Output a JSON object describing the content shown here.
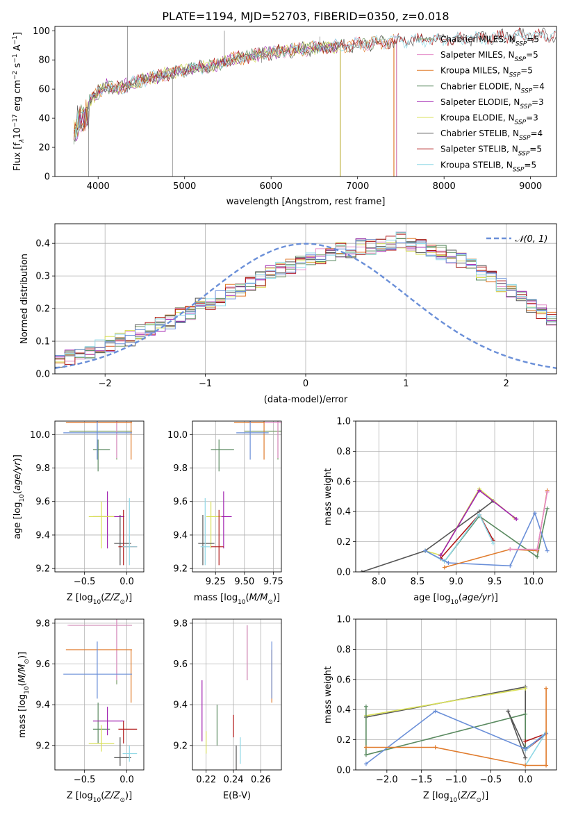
{
  "figure": {
    "title": "PLATE=1194, MJD=52703, FIBERID=0350, z=0.018",
    "colors": {
      "Chabrier MILES": "#7a9d6a",
      "Salpeter MILES": "#e48cc8",
      "Kroupa MILES": "#e07b2c",
      "Chabrier ELODIE": "#5a8a60",
      "Salpeter ELODIE": "#a020b0",
      "Kroupa ELODIE": "#d9e05a",
      "Chabrier STELIB": "#555555",
      "Salpeter STELIB": "#b01818",
      "Kroupa STELIB": "#8fd8e6",
      "normal": "#6a8fd8",
      "extra_blue": "#6a8fd8"
    }
  },
  "chart_data": [
    {
      "id": "spectrum",
      "type": "line",
      "title": "PLATE=1194, MJD=52703, FIBERID=0350, z=0.018",
      "xlabel": "wavelength [Angstrom, rest frame]",
      "ylabel_parts": [
        "Flux [f",
        "λ",
        "10",
        "−17",
        " erg cm",
        "−2",
        " s",
        "−1",
        " A",
        "−1",
        "]"
      ],
      "xlim": [
        3500,
        9300
      ],
      "ylim": [
        0,
        103
      ],
      "xticks": [
        4000,
        5000,
        6000,
        7000,
        8000,
        9000
      ],
      "yticks": [
        0,
        20,
        40,
        60,
        80,
        100
      ],
      "x": [
        3720,
        3800,
        3900,
        4000,
        4100,
        4200,
        4300,
        4500,
        4700,
        4900,
        5100,
        5300,
        5500,
        5700,
        5900,
        6100,
        6300,
        6500,
        6700,
        6900,
        7100,
        7300,
        7500,
        7800,
        8100,
        8400,
        8700,
        9000,
        9100
      ],
      "y": [
        40,
        48,
        52,
        58,
        62,
        60,
        62,
        66,
        69,
        72,
        74,
        76,
        80,
        82,
        84,
        86,
        87,
        88,
        89,
        90,
        91,
        92,
        93,
        94,
        94,
        95,
        96,
        97,
        97
      ],
      "series": [
        {
          "name": "Chabrier MILES, N",
          "sub": "SSP",
          "suffix": "=5",
          "end": 7450
        },
        {
          "name": "Salpeter MILES, N",
          "sub": "SSP",
          "suffix": "=5",
          "end": 7450
        },
        {
          "name": "Kroupa MILES, N",
          "sub": "SSP",
          "suffix": "=5",
          "end": 7420
        },
        {
          "name": "Chabrier ELODIE, N",
          "sub": "SSP",
          "suffix": "=4",
          "end": 6800
        },
        {
          "name": "Salpeter ELODIE, N",
          "sub": "SSP",
          "suffix": "=3",
          "end": 6800
        },
        {
          "name": "Kroupa ELODIE, N",
          "sub": "SSP",
          "suffix": "=3",
          "end": 6800
        },
        {
          "name": "Chabrier STELIB, N",
          "sub": "SSP",
          "suffix": "=4",
          "end": 9300
        },
        {
          "name": "Salpeter STELIB, N",
          "sub": "SSP",
          "suffix": "=5",
          "end": 9300
        },
        {
          "name": "Kroupa STELIB, N",
          "sub": "SSP",
          "suffix": "=5",
          "end": 9300
        }
      ],
      "legend": "right"
    },
    {
      "id": "residuals",
      "type": "area",
      "xlabel": "(data-model)/error",
      "ylabel": "Normed distribution",
      "xlim": [
        -2.5,
        2.5
      ],
      "ylim": [
        0,
        0.46
      ],
      "xticks": [
        -2,
        -1,
        0,
        1,
        2
      ],
      "yticks": [
        0.0,
        0.1,
        0.2,
        0.3,
        0.4
      ],
      "bin_width": 0.1,
      "histogram_values": [
        0.04,
        0.05,
        0.06,
        0.07,
        0.08,
        0.09,
        0.1,
        0.11,
        0.13,
        0.14,
        0.15,
        0.16,
        0.18,
        0.19,
        0.21,
        0.22,
        0.23,
        0.25,
        0.26,
        0.28,
        0.29,
        0.31,
        0.32,
        0.33,
        0.34,
        0.35,
        0.36,
        0.37,
        0.38,
        0.38,
        0.39,
        0.39,
        0.4,
        0.4,
        0.41,
        0.4,
        0.39,
        0.38,
        0.37,
        0.36,
        0.35,
        0.33,
        0.31,
        0.29,
        0.27,
        0.25,
        0.23,
        0.21,
        0.19,
        0.17
      ],
      "legend_label": "𝒩(0, 1)",
      "legend": "top-right"
    },
    {
      "id": "age_vs_Z",
      "type": "scatter",
      "xlabel_pre": "Z [log",
      "xlabel_sub": "10",
      "xlabel_post": "(Z/Z",
      "xlabel_sub2": "⊙",
      "xlabel_end": ")]",
      "ylabel_pre": "age  [log",
      "ylabel_sub": "10",
      "ylabel_post": "(age/yr)]",
      "xlim": [
        -0.85,
        0.2
      ],
      "ylim": [
        9.18,
        10.08
      ],
      "xticks": [
        -0.5,
        0.0
      ],
      "yticks": [
        9.2,
        9.4,
        9.6,
        9.8,
        10.0
      ]
    },
    {
      "id": "age_vs_mass",
      "type": "scatter",
      "xlabel_pre": "mass [log",
      "xlabel_sub": "10",
      "xlabel_post": "(M/M",
      "xlabel_sub2": "⊙",
      "xlabel_end": ")]",
      "xlim": [
        9.05,
        9.82
      ],
      "ylim": [
        9.18,
        10.08
      ],
      "xticks": [
        9.25,
        9.5,
        9.75
      ],
      "yticks": [
        9.2,
        9.4,
        9.6,
        9.8,
        10.0
      ]
    },
    {
      "id": "weight_vs_age",
      "type": "line",
      "xlabel_pre": "age  [log",
      "xlabel_sub": "10",
      "xlabel_post": "(age/yr)]",
      "ylabel": "mass weight",
      "xlim": [
        7.7,
        10.3
      ],
      "ylim": [
        0,
        1.0
      ],
      "xticks": [
        8.0,
        8.5,
        9.0,
        9.5,
        10.0
      ],
      "yticks": [
        0.0,
        0.2,
        0.4,
        0.6,
        0.8,
        1.0
      ]
    },
    {
      "id": "mass_vs_Z",
      "type": "scatter",
      "xlabel_pre": "Z [log",
      "xlabel_sub": "10",
      "xlabel_post": "(Z/Z",
      "xlabel_sub2": "⊙",
      "xlabel_end": ")]",
      "ylabel_pre": "mass [log",
      "ylabel_sub": "10",
      "ylabel_post": "(M/M",
      "ylabel_sub2": "⊙",
      "ylabel_end": ")]",
      "xlim": [
        -0.85,
        0.2
      ],
      "ylim": [
        9.08,
        9.82
      ],
      "xticks": [
        -0.5,
        0.0
      ],
      "yticks": [
        9.2,
        9.4,
        9.6,
        9.8
      ]
    },
    {
      "id": "mass_vs_ebv",
      "type": "scatter",
      "xlabel": "E(B-V)",
      "xlim": [
        0.21,
        0.275
      ],
      "ylim": [
        9.08,
        9.82
      ],
      "xticks": [
        0.22,
        0.24,
        0.26
      ],
      "yticks": [
        9.2,
        9.4,
        9.6,
        9.8
      ]
    },
    {
      "id": "weight_vs_Z",
      "type": "line",
      "xlabel_pre": "Z [log",
      "xlabel_sub": "10",
      "xlabel_post": "(Z/Z",
      "xlabel_sub2": "⊙",
      "xlabel_end": ")]",
      "ylabel": "mass weight",
      "xlim": [
        -2.45,
        0.45
      ],
      "ylim": [
        0,
        1.0
      ],
      "xticks": [
        -2.0,
        -1.5,
        -1.0,
        -0.5,
        0.0
      ],
      "yticks": [
        0.0,
        0.2,
        0.4,
        0.6,
        0.8,
        1.0
      ]
    }
  ],
  "fits": [
    {
      "name": "Chabrier MILES",
      "Z": -0.12,
      "Zlo": -0.68,
      "Zhi": 0.06,
      "age": 10.02,
      "ageLo": 9.85,
      "ageHi": 10.08,
      "mass": 9.79,
      "massLo": 9.5,
      "massHi": 9.82,
      "ebv": 0.25,
      "ebvLo": 9.52,
      "ebvHi": 9.79
    },
    {
      "name": "Salpeter MILES",
      "Z": -0.12,
      "Zlo": -0.7,
      "Zhi": 0.06,
      "age": 10.07,
      "ageLo": 9.86,
      "ageHi": 10.08,
      "mass": 9.79,
      "massLo": 9.52,
      "massHi": 9.82,
      "ebv": 0.25,
      "ebvLo": 9.52,
      "ebvHi": 9.79
    },
    {
      "name": "Kroupa MILES",
      "Z": 0.05,
      "Zlo": -0.72,
      "Zhi": 0.06,
      "age": 10.07,
      "ageLo": 9.85,
      "ageHi": 10.08,
      "mass": 9.67,
      "massLo": 9.41,
      "massHi": 9.67,
      "ebv": 0.268,
      "ebvLo": 9.41,
      "ebvHi": 9.67
    },
    {
      "name": "Chabrier ELODIE",
      "Z": -0.34,
      "Zlo": -0.4,
      "Zhi": -0.2,
      "age": 9.91,
      "ageLo": 9.78,
      "ageHi": 9.97,
      "mass": 9.28,
      "massLo": 9.21,
      "massHi": 9.41,
      "ebv": 0.228,
      "ebvLo": 9.2,
      "ebvHi": 9.4
    },
    {
      "name": "Salpeter ELODIE",
      "Z": -0.23,
      "Zlo": -0.4,
      "Zhi": -0.03,
      "age": 9.51,
      "ageLo": 9.32,
      "ageHi": 9.66,
      "mass": 9.32,
      "massLo": 9.25,
      "massHi": 9.39,
      "ebv": 0.217,
      "ebvLo": 9.22,
      "ebvHi": 9.52
    },
    {
      "name": "Kroupa ELODIE",
      "Z": -0.3,
      "Zlo": -0.45,
      "Zhi": -0.15,
      "age": 9.51,
      "ageLo": 9.32,
      "ageHi": 9.6,
      "mass": 9.21,
      "massLo": 9.17,
      "massHi": 9.3,
      "ebv": 0.22,
      "ebvLo": 9.16,
      "ebvHi": 9.27
    },
    {
      "name": "Chabrier STELIB",
      "Z": -0.08,
      "Zlo": -0.15,
      "Zhi": 0.05,
      "age": 9.35,
      "ageLo": 9.22,
      "ageHi": 9.52,
      "mass": 9.14,
      "massLo": 9.1,
      "massHi": 9.24,
      "ebv": 0.242,
      "ebvLo": 9.08,
      "ebvHi": 9.2
    },
    {
      "name": "Salpeter STELIB",
      "Z": -0.04,
      "Zlo": -0.1,
      "Zhi": 0.12,
      "age": 9.33,
      "ageLo": 9.22,
      "ageHi": 9.55,
      "mass": 9.28,
      "massLo": 9.21,
      "massHi": 9.32,
      "ebv": 0.24,
      "ebvLo": 9.24,
      "ebvHi": 9.35
    },
    {
      "name": "Kroupa STELIB",
      "Z": 0.03,
      "Zlo": -0.05,
      "Zhi": 0.12,
      "age": 9.33,
      "ageLo": 9.22,
      "ageHi": 9.62,
      "mass": 9.16,
      "massLo": 9.12,
      "massHi": 9.2,
      "ebv": 0.245,
      "ebvLo": 9.11,
      "ebvHi": 9.24
    },
    {
      "name": "extra",
      "Z": -0.35,
      "Zlo": -0.75,
      "Zhi": 0.06,
      "age": 10.01,
      "ageLo": 9.85,
      "ageHi": 10.08,
      "mass": 9.55,
      "massLo": 9.43,
      "massHi": 9.71,
      "ebv": 0.268,
      "ebvLo": 9.43,
      "ebvHi": 9.71
    }
  ],
  "weights_age": [
    {
      "color": "Chabrier STELIB",
      "points": [
        [
          7.78,
          0.0
        ],
        [
          8.6,
          0.14
        ],
        [
          9.3,
          0.4
        ],
        [
          9.48,
          0.47
        ]
      ]
    },
    {
      "color": "Kroupa ELODIE",
      "points": [
        [
          8.6,
          0.14
        ],
        [
          8.8,
          0.11
        ],
        [
          9.3,
          0.55
        ],
        [
          9.75,
          0.36
        ]
      ]
    },
    {
      "color": "Salpeter ELODIE",
      "points": [
        [
          8.8,
          0.11
        ],
        [
          9.3,
          0.54
        ],
        [
          9.78,
          0.35
        ]
      ]
    },
    {
      "color": "Chabrier ELODIE",
      "points": [
        [
          8.6,
          0.14
        ],
        [
          8.85,
          0.07
        ],
        [
          9.3,
          0.37
        ],
        [
          10.05,
          0.1
        ],
        [
          10.18,
          0.42
        ]
      ]
    },
    {
      "color": "Salpeter STELIB",
      "points": [
        [
          8.8,
          0.09
        ],
        [
          9.3,
          0.38
        ],
        [
          9.48,
          0.21
        ]
      ]
    },
    {
      "color": "Kroupa STELIB",
      "points": [
        [
          8.6,
          0.14
        ],
        [
          8.85,
          0.07
        ],
        [
          9.3,
          0.38
        ],
        [
          9.48,
          0.19
        ]
      ]
    },
    {
      "color": "extra_blue",
      "points": [
        [
          8.6,
          0.14
        ],
        [
          8.9,
          0.06
        ],
        [
          9.7,
          0.04
        ],
        [
          10.02,
          0.39
        ],
        [
          10.18,
          0.14
        ]
      ]
    },
    {
      "color": "Kroupa MILES",
      "points": [
        [
          8.85,
          0.03
        ],
        [
          9.7,
          0.15
        ],
        [
          10.05,
          0.14
        ],
        [
          10.18,
          0.54
        ]
      ]
    },
    {
      "color": "Salpeter MILES",
      "points": [
        [
          9.7,
          0.15
        ],
        [
          10.05,
          0.15
        ],
        [
          10.18,
          0.53
        ]
      ]
    }
  ],
  "weights_Z": [
    {
      "color": "Chabrier STELIB",
      "points": [
        [
          -2.3,
          0.35
        ],
        [
          0.0,
          0.55
        ],
        [
          0.0,
          0.14
        ],
        [
          -0.25,
          0.39
        ],
        [
          0.0,
          0.08
        ]
      ]
    },
    {
      "color": "Kroupa ELODIE",
      "points": [
        [
          -2.3,
          0.36
        ],
        [
          0.0,
          0.54
        ]
      ]
    },
    {
      "color": "Chabrier ELODIE",
      "points": [
        [
          -2.3,
          0.42
        ],
        [
          -2.3,
          0.1
        ],
        [
          0.0,
          0.37
        ],
        [
          0.0,
          0.15
        ]
      ]
    },
    {
      "color": "Salpeter STELIB",
      "points": [
        [
          0.0,
          0.19
        ],
        [
          0.3,
          0.24
        ],
        [
          0.0,
          0.13
        ]
      ]
    },
    {
      "color": "Kroupa STELIB",
      "points": [
        [
          0.0,
          0.13
        ],
        [
          0.3,
          0.25
        ],
        [
          0.0,
          0.03
        ]
      ]
    },
    {
      "color": "extra_blue",
      "points": [
        [
          -2.3,
          0.04
        ],
        [
          -1.3,
          0.39
        ],
        [
          0.0,
          0.14
        ],
        [
          0.3,
          0.24
        ]
      ]
    },
    {
      "color": "Kroupa MILES",
      "points": [
        [
          -2.3,
          0.15
        ],
        [
          -1.3,
          0.15
        ],
        [
          0.0,
          0.03
        ],
        [
          0.3,
          0.03
        ],
        [
          0.3,
          0.54
        ]
      ]
    }
  ]
}
